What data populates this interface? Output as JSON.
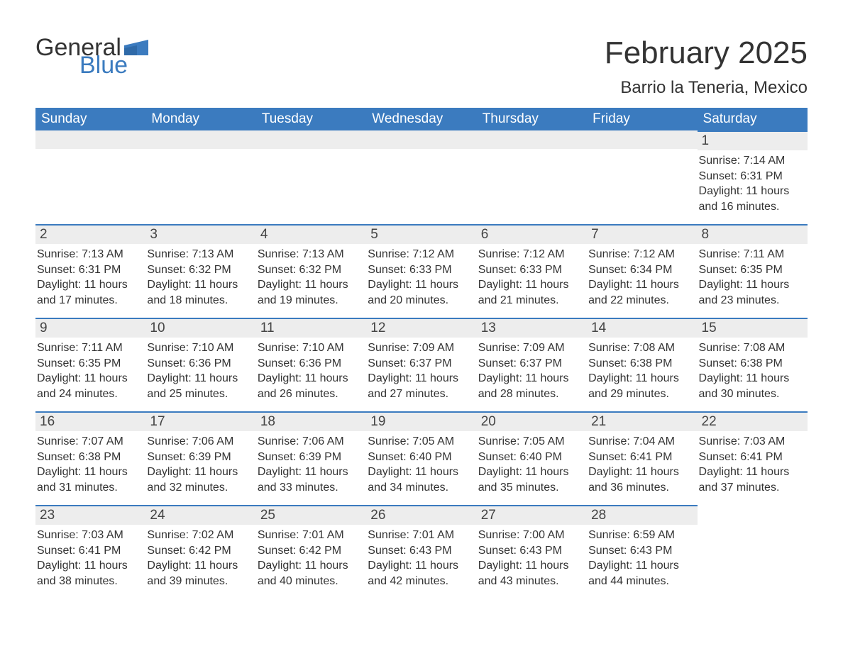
{
  "branding": {
    "logo_text_1": "General",
    "logo_text_2": "Blue",
    "logo_color_primary": "#333333",
    "logo_color_accent": "#3b7bbf"
  },
  "header": {
    "month_title": "February 2025",
    "location": "Barrio la Teneria, Mexico"
  },
  "style": {
    "header_bg": "#3b7bbf",
    "header_text_color": "#ffffff",
    "daynum_bg": "#ededed",
    "row_divider_color": "#3b7bbf",
    "page_bg": "#ffffff",
    "body_text_color": "#333333",
    "th_fontsize": 19,
    "daynum_fontsize": 19,
    "body_fontsize": 16,
    "title_fontsize": 44,
    "location_fontsize": 24
  },
  "columns": [
    "Sunday",
    "Monday",
    "Tuesday",
    "Wednesday",
    "Thursday",
    "Friday",
    "Saturday"
  ],
  "weeks": [
    [
      null,
      null,
      null,
      null,
      null,
      null,
      {
        "day": "1",
        "sunrise": "Sunrise: 7:14 AM",
        "sunset": "Sunset: 6:31 PM",
        "daylight": "Daylight: 11 hours and 16 minutes."
      }
    ],
    [
      {
        "day": "2",
        "sunrise": "Sunrise: 7:13 AM",
        "sunset": "Sunset: 6:31 PM",
        "daylight": "Daylight: 11 hours and 17 minutes."
      },
      {
        "day": "3",
        "sunrise": "Sunrise: 7:13 AM",
        "sunset": "Sunset: 6:32 PM",
        "daylight": "Daylight: 11 hours and 18 minutes."
      },
      {
        "day": "4",
        "sunrise": "Sunrise: 7:13 AM",
        "sunset": "Sunset: 6:32 PM",
        "daylight": "Daylight: 11 hours and 19 minutes."
      },
      {
        "day": "5",
        "sunrise": "Sunrise: 7:12 AM",
        "sunset": "Sunset: 6:33 PM",
        "daylight": "Daylight: 11 hours and 20 minutes."
      },
      {
        "day": "6",
        "sunrise": "Sunrise: 7:12 AM",
        "sunset": "Sunset: 6:33 PM",
        "daylight": "Daylight: 11 hours and 21 minutes."
      },
      {
        "day": "7",
        "sunrise": "Sunrise: 7:12 AM",
        "sunset": "Sunset: 6:34 PM",
        "daylight": "Daylight: 11 hours and 22 minutes."
      },
      {
        "day": "8",
        "sunrise": "Sunrise: 7:11 AM",
        "sunset": "Sunset: 6:35 PM",
        "daylight": "Daylight: 11 hours and 23 minutes."
      }
    ],
    [
      {
        "day": "9",
        "sunrise": "Sunrise: 7:11 AM",
        "sunset": "Sunset: 6:35 PM",
        "daylight": "Daylight: 11 hours and 24 minutes."
      },
      {
        "day": "10",
        "sunrise": "Sunrise: 7:10 AM",
        "sunset": "Sunset: 6:36 PM",
        "daylight": "Daylight: 11 hours and 25 minutes."
      },
      {
        "day": "11",
        "sunrise": "Sunrise: 7:10 AM",
        "sunset": "Sunset: 6:36 PM",
        "daylight": "Daylight: 11 hours and 26 minutes."
      },
      {
        "day": "12",
        "sunrise": "Sunrise: 7:09 AM",
        "sunset": "Sunset: 6:37 PM",
        "daylight": "Daylight: 11 hours and 27 minutes."
      },
      {
        "day": "13",
        "sunrise": "Sunrise: 7:09 AM",
        "sunset": "Sunset: 6:37 PM",
        "daylight": "Daylight: 11 hours and 28 minutes."
      },
      {
        "day": "14",
        "sunrise": "Sunrise: 7:08 AM",
        "sunset": "Sunset: 6:38 PM",
        "daylight": "Daylight: 11 hours and 29 minutes."
      },
      {
        "day": "15",
        "sunrise": "Sunrise: 7:08 AM",
        "sunset": "Sunset: 6:38 PM",
        "daylight": "Daylight: 11 hours and 30 minutes."
      }
    ],
    [
      {
        "day": "16",
        "sunrise": "Sunrise: 7:07 AM",
        "sunset": "Sunset: 6:38 PM",
        "daylight": "Daylight: 11 hours and 31 minutes."
      },
      {
        "day": "17",
        "sunrise": "Sunrise: 7:06 AM",
        "sunset": "Sunset: 6:39 PM",
        "daylight": "Daylight: 11 hours and 32 minutes."
      },
      {
        "day": "18",
        "sunrise": "Sunrise: 7:06 AM",
        "sunset": "Sunset: 6:39 PM",
        "daylight": "Daylight: 11 hours and 33 minutes."
      },
      {
        "day": "19",
        "sunrise": "Sunrise: 7:05 AM",
        "sunset": "Sunset: 6:40 PM",
        "daylight": "Daylight: 11 hours and 34 minutes."
      },
      {
        "day": "20",
        "sunrise": "Sunrise: 7:05 AM",
        "sunset": "Sunset: 6:40 PM",
        "daylight": "Daylight: 11 hours and 35 minutes."
      },
      {
        "day": "21",
        "sunrise": "Sunrise: 7:04 AM",
        "sunset": "Sunset: 6:41 PM",
        "daylight": "Daylight: 11 hours and 36 minutes."
      },
      {
        "day": "22",
        "sunrise": "Sunrise: 7:03 AM",
        "sunset": "Sunset: 6:41 PM",
        "daylight": "Daylight: 11 hours and 37 minutes."
      }
    ],
    [
      {
        "day": "23",
        "sunrise": "Sunrise: 7:03 AM",
        "sunset": "Sunset: 6:41 PM",
        "daylight": "Daylight: 11 hours and 38 minutes."
      },
      {
        "day": "24",
        "sunrise": "Sunrise: 7:02 AM",
        "sunset": "Sunset: 6:42 PM",
        "daylight": "Daylight: 11 hours and 39 minutes."
      },
      {
        "day": "25",
        "sunrise": "Sunrise: 7:01 AM",
        "sunset": "Sunset: 6:42 PM",
        "daylight": "Daylight: 11 hours and 40 minutes."
      },
      {
        "day": "26",
        "sunrise": "Sunrise: 7:01 AM",
        "sunset": "Sunset: 6:43 PM",
        "daylight": "Daylight: 11 hours and 42 minutes."
      },
      {
        "day": "27",
        "sunrise": "Sunrise: 7:00 AM",
        "sunset": "Sunset: 6:43 PM",
        "daylight": "Daylight: 11 hours and 43 minutes."
      },
      {
        "day": "28",
        "sunrise": "Sunrise: 6:59 AM",
        "sunset": "Sunset: 6:43 PM",
        "daylight": "Daylight: 11 hours and 44 minutes."
      },
      null
    ]
  ]
}
